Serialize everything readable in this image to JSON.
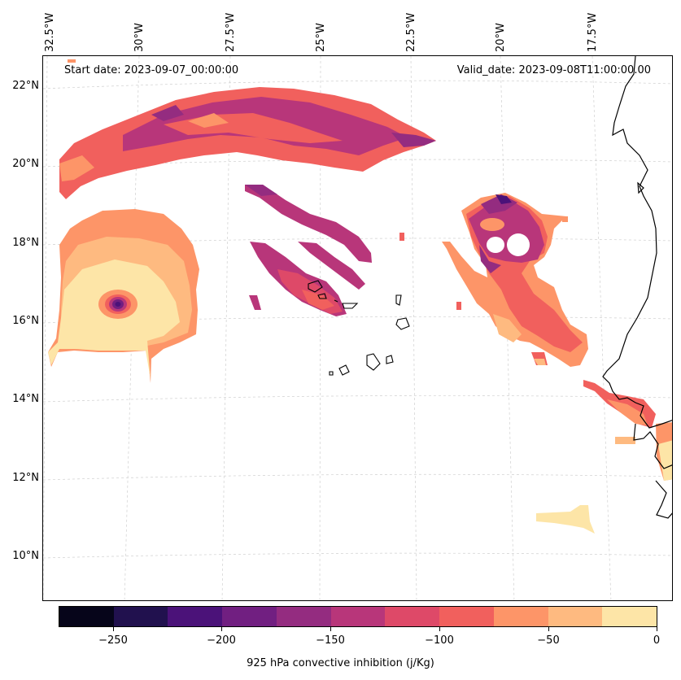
{
  "map": {
    "start_text": "Start date: 2023-09-07_00:00:00",
    "valid_text": "Valid_date: 2023-09-08T11:00:00.00",
    "lon_labels": [
      "32.5°W",
      "30°W",
      "27.5°W",
      "25°W",
      "22.5°W",
      "20°W",
      "17.5°W"
    ],
    "lat_labels": [
      "22°N",
      "20°N",
      "18°N",
      "16°N",
      "14°N",
      "12°N",
      "10°N"
    ]
  },
  "colorbar": {
    "label": "925 hPa convective inhibition (j/Kg)",
    "ticks": [
      "−250",
      "−200",
      "−150",
      "−100",
      "−50",
      "0"
    ],
    "colors": [
      "#06051a",
      "#21114e",
      "#4b1279",
      "#711f81",
      "#942c80",
      "#b8367a",
      "#de4968",
      "#f1605d",
      "#fd9568",
      "#feba80",
      "#fde5a7"
    ]
  }
}
